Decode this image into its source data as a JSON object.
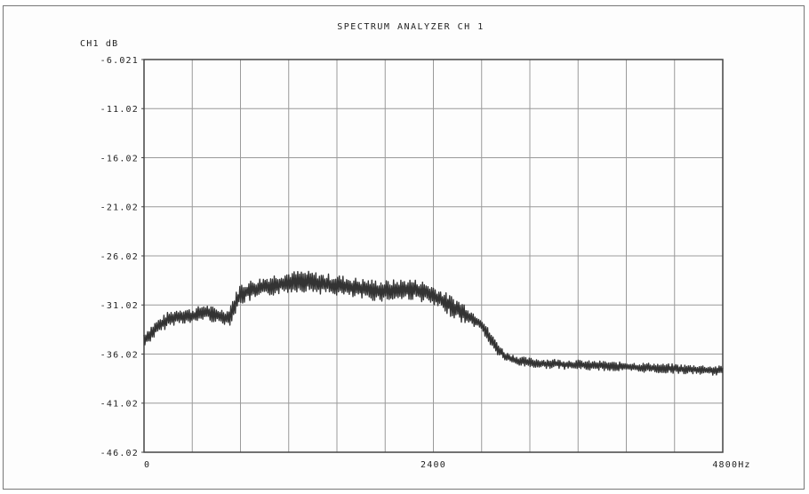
{
  "chart_data": {
    "type": "line",
    "title": "SPECTRUM ANALYZER CH 1",
    "ylabel": "CH1 dB",
    "xlim": [
      0,
      4800
    ],
    "ylim": [
      -46.02,
      -6.021
    ],
    "y_ticks": [
      "-6.021",
      "-11.02",
      "-16.02",
      "-21.02",
      "-26.02",
      "-31.02",
      "-36.02",
      "-41.02",
      "-46.02"
    ],
    "y_tick_values": [
      -6.021,
      -11.02,
      -16.02,
      -21.02,
      -26.02,
      -31.02,
      -36.02,
      -41.02,
      -46.02
    ],
    "x_ticks": [
      "0",
      "2400",
      "4800Hz"
    ],
    "x_tick_values": [
      0,
      2400,
      4800
    ],
    "grid": true,
    "grid_x_divisions": 12,
    "series": [
      {
        "x": [
          0,
          100,
          200,
          300,
          400,
          500,
          600,
          700,
          800,
          900,
          1000,
          1100,
          1200,
          1300,
          1400,
          1500,
          1600,
          1700,
          1800,
          1900,
          2000,
          2100,
          2200,
          2300,
          2400,
          2500,
          2600,
          2700,
          2800,
          2900,
          3000,
          3100,
          3200,
          3300,
          3400,
          3500,
          3600,
          3700,
          3800,
          3900,
          4000,
          4100,
          4200,
          4300,
          4400,
          4500,
          4600,
          4700,
          4800
        ],
        "values": [
          -34.6,
          -33.4,
          -32.5,
          -32.1,
          -32.2,
          -31.7,
          -32.1,
          -32.3,
          -29.9,
          -29.5,
          -29.2,
          -28.9,
          -28.7,
          -28.6,
          -28.7,
          -28.9,
          -29.0,
          -29.2,
          -29.4,
          -29.5,
          -29.6,
          -29.5,
          -29.4,
          -29.6,
          -30.1,
          -30.8,
          -31.5,
          -32.2,
          -33.0,
          -35.0,
          -36.3,
          -36.7,
          -36.9,
          -37.0,
          -37.0,
          -37.1,
          -37.1,
          -37.2,
          -37.2,
          -37.3,
          -37.3,
          -37.4,
          -37.4,
          -37.5,
          -37.5,
          -37.6,
          -37.6,
          -37.7,
          -37.7
        ]
      }
    ]
  }
}
